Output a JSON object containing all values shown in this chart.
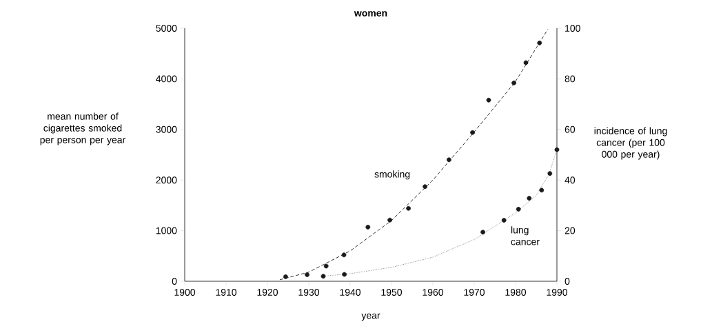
{
  "chart_data": {
    "type": "scatter",
    "title": "women",
    "xlabel": "year",
    "ylabel": "mean number of cigarettes smoked per person per year",
    "y2label": "incidence of lung cancer (per 100 000 per year)",
    "xlim": [
      1900,
      1990
    ],
    "xticks": [
      1900,
      1910,
      1920,
      1930,
      1940,
      1950,
      1960,
      1970,
      1980,
      1990
    ],
    "ylim": [
      0,
      5000
    ],
    "yticks": [
      0,
      1000,
      2000,
      3000,
      4000,
      5000
    ],
    "y2lim": [
      0,
      100
    ],
    "y2ticks": [
      0,
      20,
      40,
      60,
      80,
      100
    ],
    "series": [
      {
        "marker": "circle",
        "color": "#1a1a1a",
        "x": [
          1924.4,
          1929.6,
          1934.2,
          1938.5,
          1944.3,
          1949.6,
          1954.1,
          1958.1,
          1963.9,
          1969.6,
          1973.5,
          1979.6,
          1982.5,
          1985.8
        ],
        "values": [
          90,
          130,
          300,
          520,
          1070,
          1210,
          1440,
          1870,
          2400,
          2940,
          3580,
          3920,
          4320,
          4710
        ]
      },
      {
        "type": "line",
        "marker": "none",
        "line_style": "dashed",
        "color": "#333333",
        "x": [
          1923,
          1930,
          1940,
          1950,
          1960,
          1970,
          1980,
          1987.8
        ],
        "values": [
          30,
          180,
          600,
          1200,
          2000,
          2950,
          3950,
          4980
        ]
      },
      {
        "marker": "circle",
        "axis": "y2",
        "color": "#1a1a1a",
        "x": [
          1933.5,
          1938.6,
          1972.1,
          1977.2,
          1980.7,
          1983.3,
          1986.3,
          1988.3,
          1990
        ],
        "values": [
          2,
          2.7,
          19.4,
          24.1,
          28.5,
          32.8,
          36,
          42.6,
          52
        ]
      },
      {
        "type": "line",
        "marker": "none",
        "line_style": "dotted",
        "axis": "y2",
        "color": "#888888",
        "x": [
          1933.5,
          1940,
          1950,
          1960,
          1970,
          1980,
          1985,
          1988,
          1990
        ],
        "values": [
          2,
          3,
          5.5,
          9.5,
          16.5,
          27,
          34,
          42,
          52
        ]
      }
    ],
    "annotations": [
      "smoking",
      "lung cancer"
    ]
  }
}
